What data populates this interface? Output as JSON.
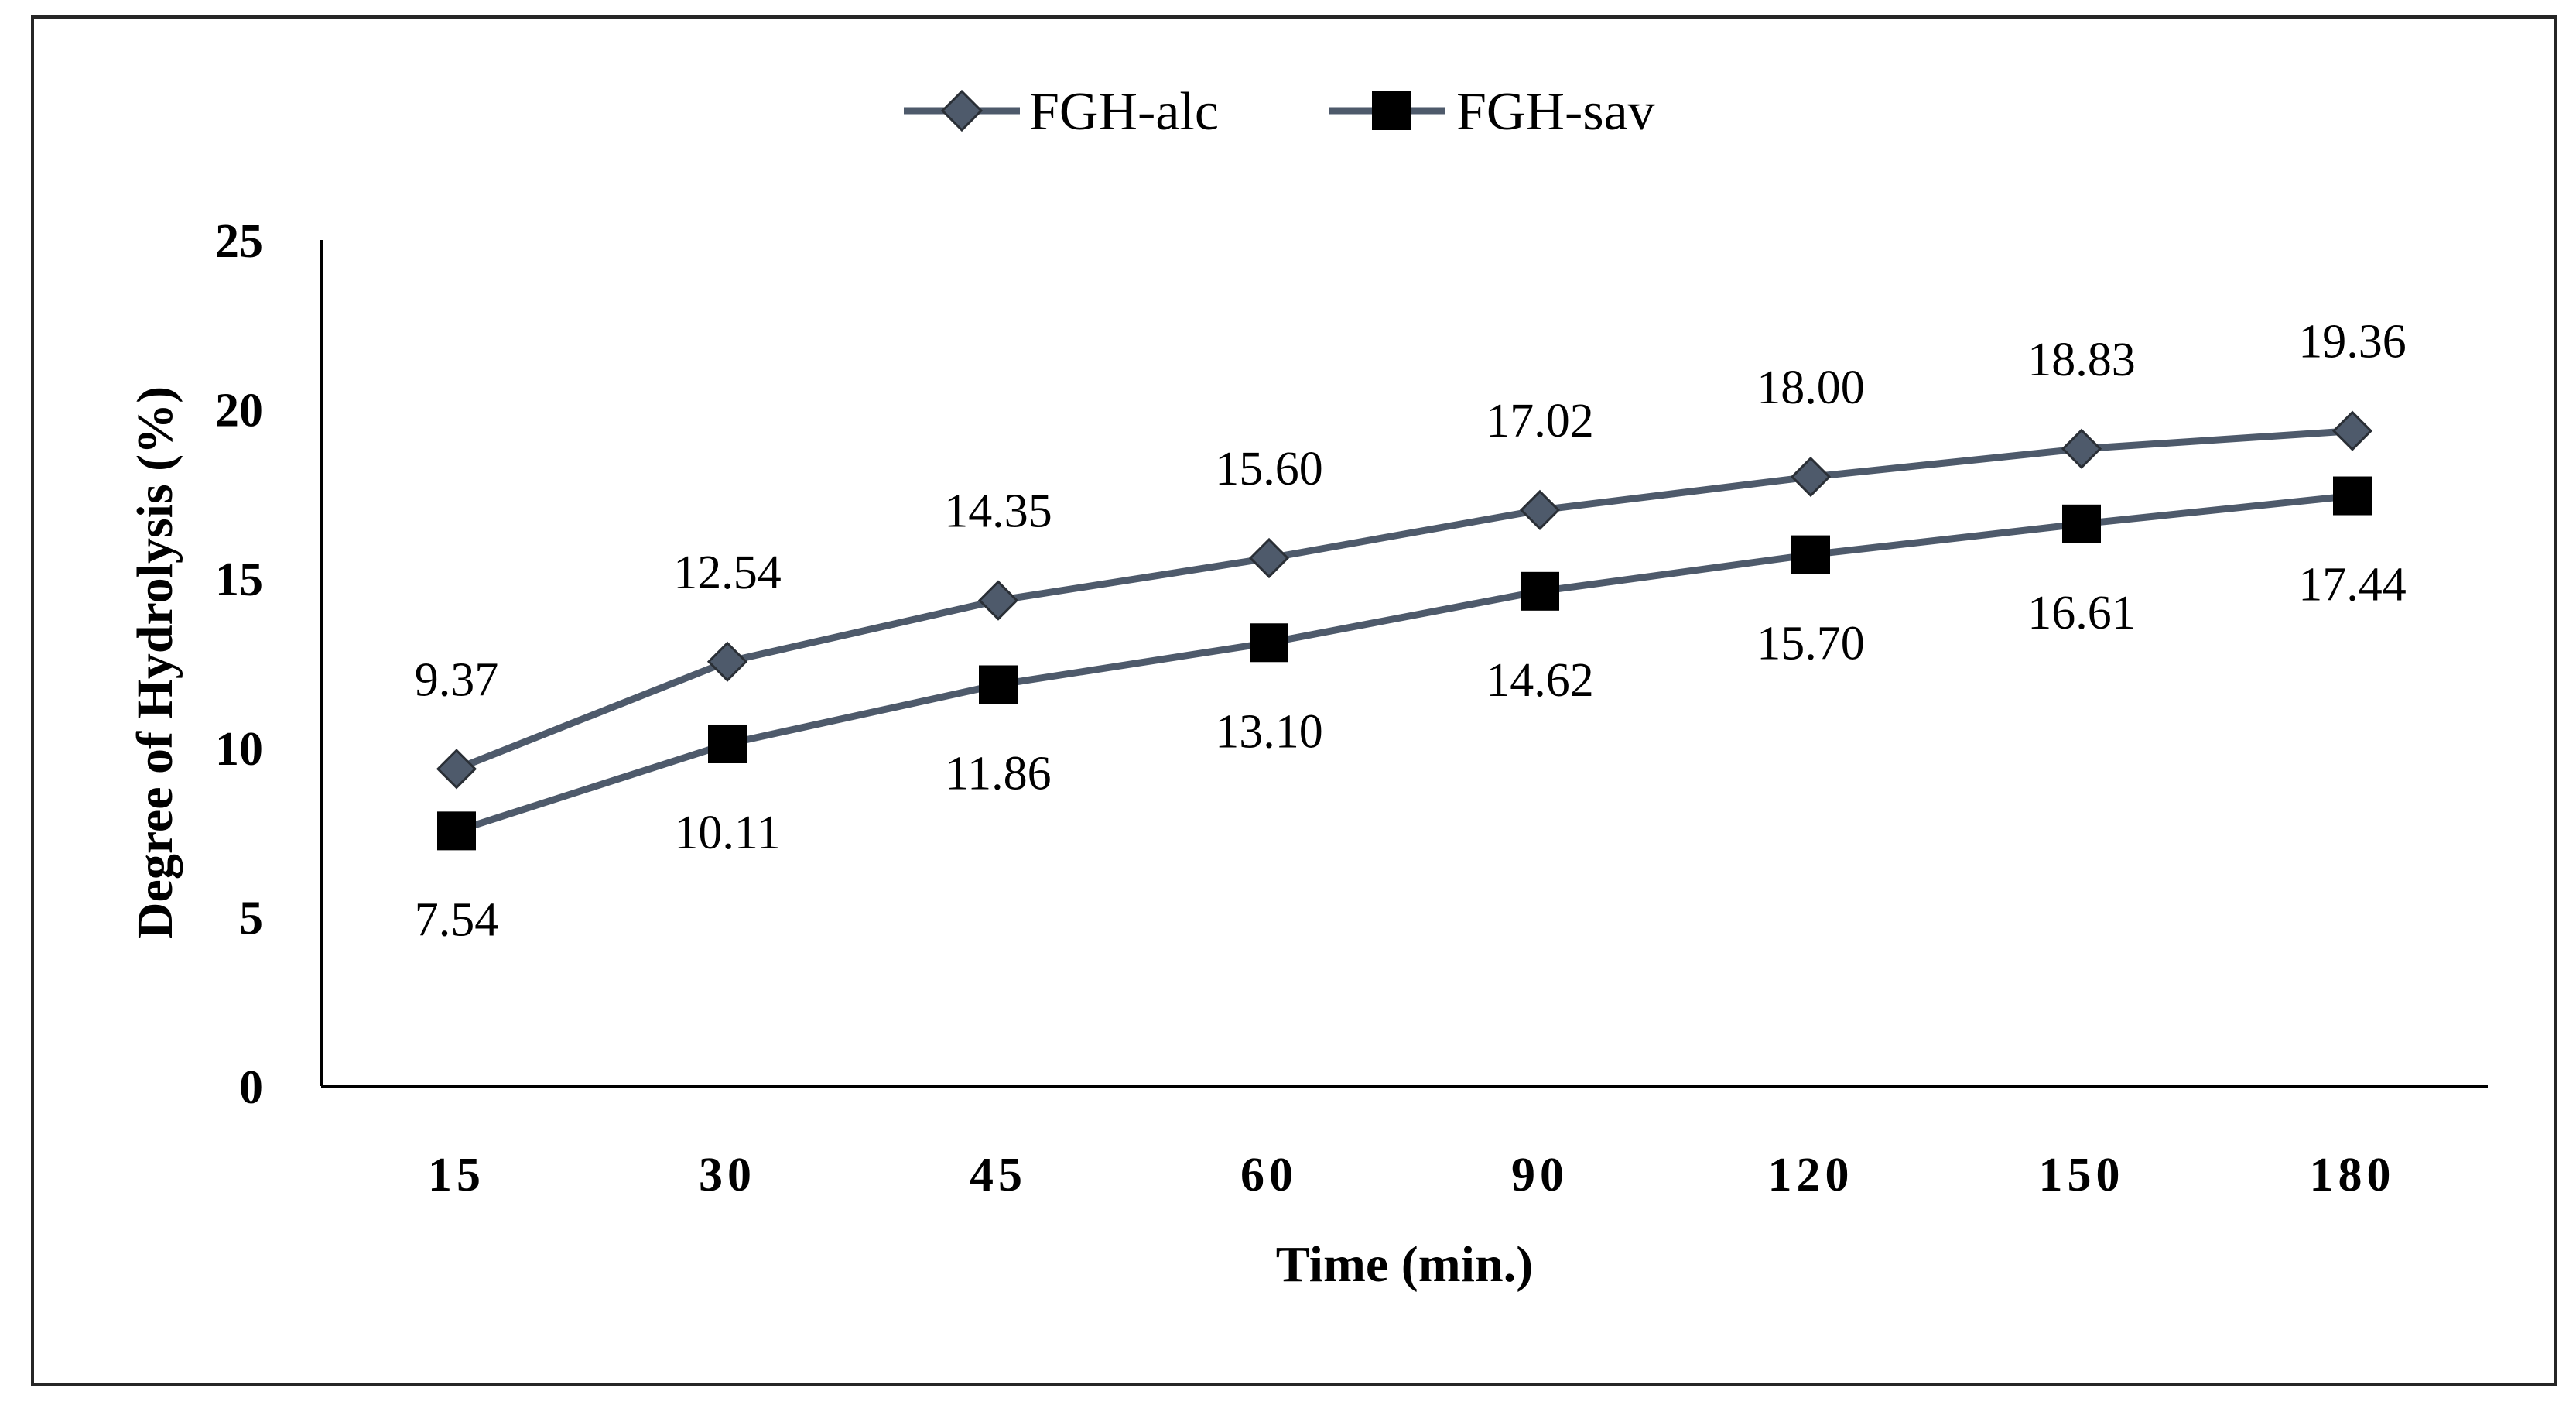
{
  "chart_data": {
    "type": "line",
    "title": "",
    "xlabel": "Time (min.)",
    "ylabel": "Degree of Hydrolysis (%)",
    "categories": [
      "15",
      "30",
      "45",
      "60",
      "90",
      "120",
      "150",
      "180"
    ],
    "ylim": [
      0,
      25
    ],
    "yticks": [
      0,
      5,
      10,
      15,
      20,
      25
    ],
    "grid": false,
    "legend_position": "top-center",
    "series": [
      {
        "name": "FGH-alc",
        "marker": "diamond",
        "values": [
          9.37,
          12.54,
          14.35,
          15.6,
          17.02,
          18.0,
          18.83,
          19.36
        ],
        "labels": [
          "9.37",
          "12.54",
          "14.35",
          "15.60",
          "17.02",
          "18.00",
          "18.83",
          "19.36"
        ],
        "label_position": "above"
      },
      {
        "name": "FGH-sav",
        "marker": "square",
        "values": [
          7.54,
          10.11,
          11.86,
          13.1,
          14.62,
          15.7,
          16.61,
          17.44
        ],
        "labels": [
          "7.54",
          "10.11",
          "11.86",
          "13.10",
          "14.62",
          "15.70",
          "16.61",
          "17.44"
        ],
        "label_position": "below"
      }
    ],
    "colors": {
      "line": "#4e5a6b",
      "marker_alc": "#4e5a6b",
      "marker_sav": "#000000",
      "axis": "#000000",
      "frame": "#262626"
    }
  }
}
